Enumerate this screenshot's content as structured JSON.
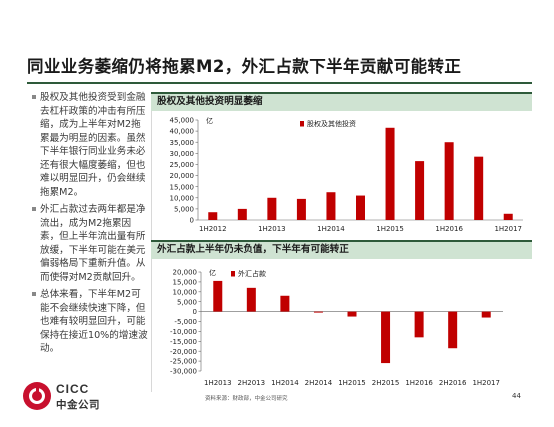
{
  "title": "同业业务萎缩仍将拖累M2，外汇占款下半年贡献可能转正",
  "bullets": [
    "股权及其他投资受到金融去杠杆政策的冲击有所压缩，成为上半年对M2拖累最为明显的因素。虽然下半年银行同业业务未必还有很大幅度萎缩，但也难以明显回升，仍会继续拖累M2。",
    "外汇占款过去两年都是净流出，成为M2拖累因素，但上半年流出量有所放缓，下半年可能在美元偏弱格局下重新升值。从而使得对M2贡献回升。",
    "总体来看，下半年M2可能不会继续快速下降，但也难有较明显回升，可能保持在接近10%的增速波动。"
  ],
  "panel1": {
    "header": "股权及其他投资明显萎缩"
  },
  "panel2": {
    "header": "外汇占款上半年仍未负值，下半年有可能转正"
  },
  "footer": {
    "source": "资料来源：财政部，中金公司研究",
    "page": "44"
  },
  "logo": {
    "en": "CICC",
    "cn": "中金公司"
  },
  "colors": {
    "bar": "#c00000",
    "header_bg": "#cfe3d2",
    "rule": "#2e5a3a"
  },
  "chart_data": [
    {
      "type": "bar",
      "title": "股权及其他投资明显萎缩",
      "unit_label": "亿",
      "legend": "top-right",
      "grid": false,
      "ylim": [
        0,
        45000
      ],
      "yticks": [
        0,
        5000,
        10000,
        15000,
        20000,
        25000,
        30000,
        35000,
        40000,
        45000
      ],
      "ytick_labels": [
        "0",
        "5,000",
        "10,000",
        "15,000",
        "20,000",
        "25,000",
        "30,000",
        "35,000",
        "40,000",
        "45,000"
      ],
      "categories": [
        "1H2012",
        "2H2012",
        "1H2013",
        "2H2013",
        "1H2014",
        "2H2014",
        "1H2015",
        "2H2015",
        "1H2016",
        "2H2016",
        "1H2017"
      ],
      "xtick_labels": [
        "1H2012",
        "",
        "1H2013",
        "",
        "1H2014",
        "",
        "1H2015",
        "",
        "1H2016",
        "",
        "1H2017"
      ],
      "series": [
        {
          "name": "股权及其他投资",
          "values": [
            3500,
            5000,
            10000,
            9500,
            12500,
            11000,
            41500,
            26500,
            35000,
            28500,
            2800
          ]
        }
      ]
    },
    {
      "type": "bar",
      "title": "外汇占款上半年仍未负值，下半年有可能转正",
      "unit_label": "亿",
      "legend": "top-left",
      "grid": false,
      "ylim": [
        -30000,
        20000
      ],
      "yticks": [
        -30000,
        -25000,
        -20000,
        -15000,
        -10000,
        -5000,
        0,
        5000,
        10000,
        15000,
        20000
      ],
      "ytick_labels": [
        "-30,000",
        "-25,000",
        "-20,000",
        "-15,000",
        "-10,000",
        "-5,000",
        "0",
        "5,000",
        "10,000",
        "15,000",
        "20,000"
      ],
      "categories": [
        "1H2013",
        "2H2013",
        "1H2014",
        "2H2014",
        "1H2015",
        "2H2015",
        "1H2016",
        "2H2016",
        "1H2017"
      ],
      "xtick_labels": [
        "1H2013",
        "2H2013",
        "1H2014",
        "2H2014",
        "1H2015",
        "2H2015",
        "1H2016",
        "2H2016",
        "1H2017"
      ],
      "series": [
        {
          "name": "外汇占款",
          "values": [
            15500,
            12000,
            8000,
            -500,
            -2500,
            -26000,
            -13000,
            -18500,
            -3000
          ]
        }
      ]
    }
  ]
}
